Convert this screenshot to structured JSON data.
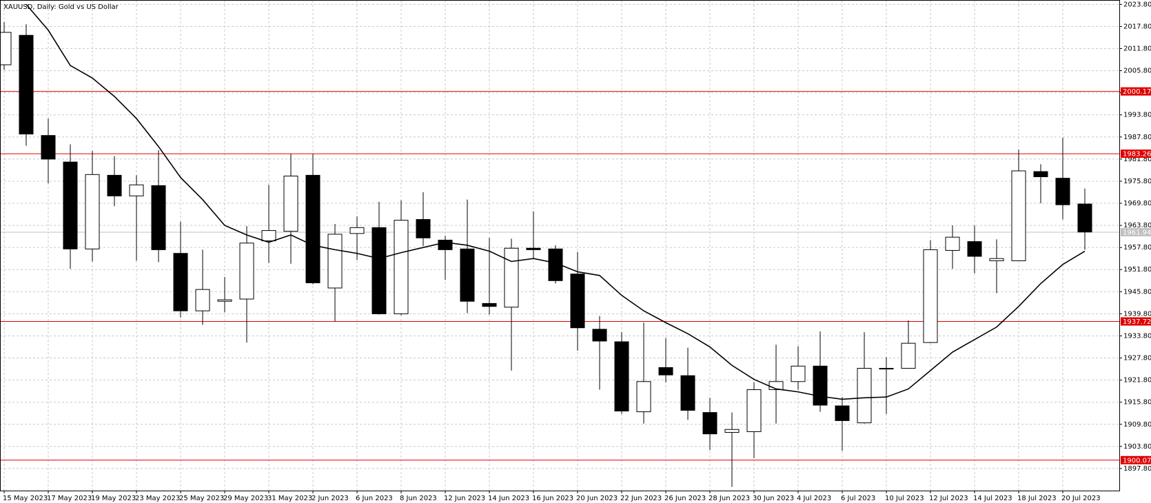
{
  "chart_data": {
    "type": "candlestick",
    "title": "XAUUSD, Daily:  Gold vs US Dollar",
    "categories": [
      "15 May 2023",
      null,
      "17 May 2023",
      null,
      "19 May 2023",
      null,
      "23 May 2023",
      null,
      "25 May 2023",
      null,
      "29 May 2023",
      null,
      "31 May 2023",
      null,
      "2 Jun 2023",
      null,
      "6 Jun 2023",
      null,
      "8 Jun 2023",
      null,
      "12 Jun 2023",
      null,
      "14 Jun 2023",
      null,
      "16 Jun 2023",
      null,
      "20 Jun 2023",
      null,
      "22 Jun 2023",
      null,
      "26 Jun 2023",
      null,
      "28 Jun 2023",
      null,
      "30 Jun 2023",
      null,
      "4 Jul 2023",
      null,
      "6 Jul 2023",
      null,
      "10 Jul 2023",
      null,
      "12 Jul 2023",
      null,
      "14 Jul 2023",
      null,
      "18 Jul 2023",
      null,
      "20 Jul 2023",
      null
    ],
    "open": [
      2007.4,
      2015.4,
      1988.2,
      1981.0,
      1957.4,
      1977.4,
      1971.8,
      1974.6,
      1956.2,
      1940.6,
      1943.2,
      1943.8,
      1959.6,
      1962.2,
      1977.4,
      1946.8,
      1961.6,
      1963.2,
      1939.8,
      1965.4,
      1959.8,
      1957.4,
      1942.6,
      1941.6,
      1957.6,
      1957.4,
      1950.6,
      1935.6,
      1932.2,
      1913.2,
      1925.2,
      1923.0,
      1913.0,
      1907.6,
      1907.8,
      1919.2,
      1921.4,
      1925.6,
      1914.8,
      1910.2,
      1924.8,
      1925.0,
      1932.0,
      1957.0,
      1959.4,
      1954.2,
      1954.2,
      1978.4,
      1976.6,
      1969.6
    ],
    "high": [
      2019.0,
      2018.4,
      1992.8,
      1985.8,
      1984.0,
      1982.6,
      1977.4,
      1984.2,
      1964.8,
      1957.2,
      1949.8,
      1963.6,
      1974.8,
      1983.2,
      1983.2,
      1964.2,
      1966.2,
      1970.2,
      1970.6,
      1972.8,
      1961.0,
      1970.8,
      1960.4,
      1960.2,
      1967.6,
      1958.4,
      1956.6,
      1939.2,
      1934.8,
      1937.4,
      1933.2,
      1930.6,
      1917.0,
      1913.0,
      1921.2,
      1931.4,
      1931.0,
      1935.0,
      1917.2,
      1934.8,
      1928.0,
      1938.0,
      1959.8,
      1963.8,
      1963.8,
      1960.0,
      1984.4,
      1980.4,
      1987.6,
      1973.8
    ],
    "low": [
      2006.0,
      1985.4,
      1975.2,
      1952.0,
      1954.0,
      1969.0,
      1954.2,
      1953.8,
      1938.8,
      1936.8,
      1940.2,
      1932.0,
      1953.6,
      1953.4,
      1947.8,
      1937.8,
      1954.4,
      1939.6,
      1939.4,
      1958.2,
      1949.0,
      1940.0,
      1939.6,
      1924.4,
      1954.6,
      1948.0,
      1929.8,
      1919.2,
      1912.6,
      1910.0,
      1921.2,
      1911.0,
      1902.8,
      1892.8,
      1900.6,
      1910.0,
      1919.2,
      1913.2,
      1902.6,
      1910.0,
      1912.6,
      1925.0,
      1931.8,
      1952.0,
      1950.8,
      1945.4,
      1954.2,
      1969.8,
      1965.4,
      1957.2
    ],
    "close": [
      2016.2,
      1988.6,
      1981.8,
      1957.4,
      1977.6,
      1971.8,
      1974.8,
      1957.2,
      1940.6,
      1946.4,
      1943.6,
      1959.0,
      1962.4,
      1977.2,
      1948.2,
      1961.4,
      1963.2,
      1939.8,
      1965.2,
      1960.4,
      1957.2,
      1943.2,
      1941.8,
      1957.6,
      1957.2,
      1948.8,
      1936.0,
      1932.4,
      1913.4,
      1921.4,
      1923.2,
      1913.6,
      1907.2,
      1908.4,
      1919.2,
      1921.4,
      1925.6,
      1915.0,
      1910.8,
      1925.0,
      1925.0,
      1931.8,
      1957.2,
      1960.6,
      1955.4,
      1954.8,
      1978.6,
      1977.0,
      1969.4,
      1962.0
    ],
    "overlay": {
      "color": "#000000",
      "values": [
        null,
        2023.8,
        2016.8,
        2007.2,
        2003.8,
        1998.8,
        1992.8,
        1985.2,
        1976.8,
        1970.8,
        1963.8,
        1961.2,
        1959.2,
        1961.2,
        1958.4,
        1957.2,
        1956.2,
        1954.8,
        1956.4,
        1957.8,
        1959.2,
        1958.4,
        1956.8,
        1954.0,
        1954.8,
        1953.6,
        1951.2,
        1950.2,
        1944.8,
        1940.6,
        1937.4,
        1934.4,
        1930.8,
        1925.8,
        1922.0,
        1919.4,
        1918.6,
        1917.4,
        1916.6,
        1917.0,
        1917.2,
        1919.4,
        1924.4,
        1929.4,
        1932.8,
        1936.2,
        1941.8,
        1948.0,
        1953.2,
        1956.8
      ]
    },
    "levels": [
      {
        "value": 2000.17,
        "color": "#e00000"
      },
      {
        "value": 1983.26,
        "color": "#e00000"
      },
      {
        "value": 1937.72,
        "color": "#e00000"
      },
      {
        "value": 1900.07,
        "color": "#e00000"
      },
      {
        "value": 1961.94,
        "color": "#c0c0c0"
      }
    ],
    "ylim": [
      1891.8,
      2024.8
    ],
    "yticks": [
      {
        "value": 1897.8,
        "label": "1897.80"
      },
      {
        "value": 1903.8,
        "label": "1903.80"
      },
      {
        "value": 1909.8,
        "label": "1909.80"
      },
      {
        "value": 1915.8,
        "label": "1915.80"
      },
      {
        "value": 1921.8,
        "label": "1921.80"
      },
      {
        "value": 1927.8,
        "label": "1927.80"
      },
      {
        "value": 1933.8,
        "label": "1933.80"
      },
      {
        "value": 1939.8,
        "label": "1939.80"
      },
      {
        "value": 1945.8,
        "label": "1945.80"
      },
      {
        "value": 1951.8,
        "label": "1951.80"
      },
      {
        "value": 1957.8,
        "label": "1957.80"
      },
      {
        "value": 1963.8,
        "label": "1963.80"
      },
      {
        "value": 1969.8,
        "label": "1969.80"
      },
      {
        "value": 1975.8,
        "label": "1975.80"
      },
      {
        "value": 1981.8,
        "label": "1981.80"
      },
      {
        "value": 1987.8,
        "label": "1987.80"
      },
      {
        "value": 1993.8,
        "label": "1993.80"
      },
      {
        "value": 1999.8,
        "label": "1999.80"
      },
      {
        "value": 2005.8,
        "label": "2005.80"
      },
      {
        "value": 2011.8,
        "label": "2011.80"
      },
      {
        "value": 2017.8,
        "label": "2017.80"
      },
      {
        "value": 2023.8,
        "label": "2023.80"
      }
    ],
    "grid": true
  }
}
